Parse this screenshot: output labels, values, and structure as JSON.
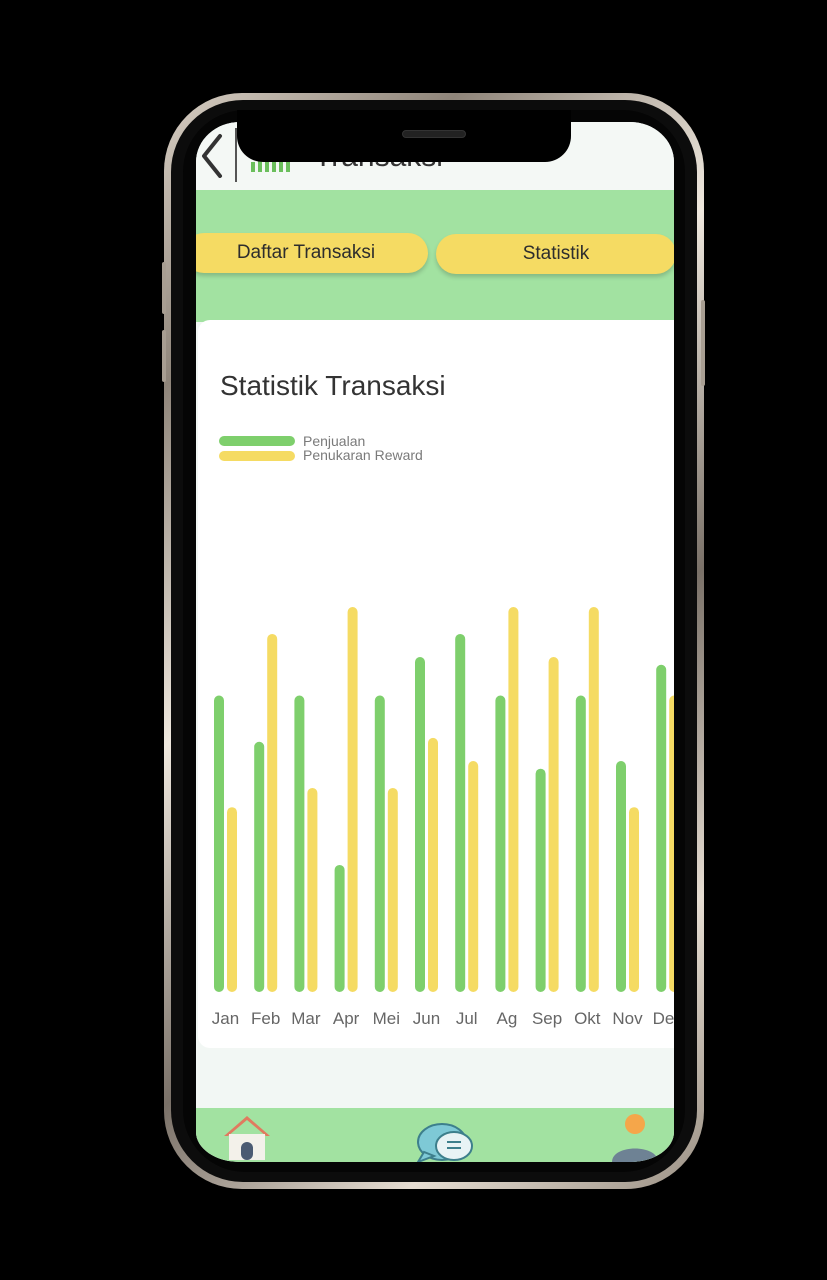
{
  "header": {
    "title": "Transaksi",
    "back_icon": "chevron-left-icon",
    "page_icon": "trending-up-bar-chart-icon"
  },
  "tabs": [
    {
      "label": "Daftar Transaksi"
    },
    {
      "label": "Statistik"
    }
  ],
  "card": {
    "title": "Statistik Transaksi"
  },
  "colors": {
    "penjualan": "#7ecf6c",
    "penukaran_reward": "#f5db63",
    "band": "#a2e2a1",
    "tab": "#f5db63"
  },
  "chart_data": {
    "type": "bar",
    "categories": [
      "Jan",
      "Feb",
      "Mar",
      "Apr",
      "Mei",
      "Jun",
      "Jul",
      "Ag",
      "Sep",
      "Okt",
      "Nov",
      "Des"
    ],
    "series": [
      {
        "name": "Penjualan",
        "values": [
          7.7,
          6.5,
          7.7,
          3.3,
          7.7,
          8.7,
          9.3,
          7.7,
          5.8,
          7.7,
          6.0,
          8.5
        ]
      },
      {
        "name": "Penukaran Reward",
        "values": [
          4.8,
          9.3,
          5.3,
          10.0,
          5.3,
          6.6,
          6.0,
          10.0,
          8.7,
          10.0,
          4.8,
          7.7
        ]
      }
    ],
    "ylim": [
      0,
      10
    ],
    "grid": false,
    "legend": "top-left"
  },
  "bottom_nav": {
    "items": [
      {
        "icon": "home-icon"
      },
      {
        "icon": "chat-icon"
      },
      {
        "icon": "profile-icon"
      }
    ]
  }
}
